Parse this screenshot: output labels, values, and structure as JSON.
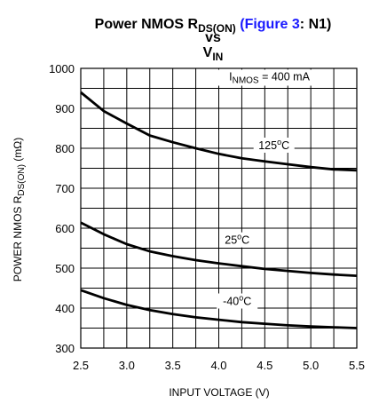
{
  "title": {
    "line1_prefix": "Power NMOS R",
    "line1_sub": "DS(ON)",
    "line1_paren_open": "(",
    "line1_link": "Figure 3",
    "line1_paren_rest": ": N1)",
    "line2": "vs",
    "line3_main": "V",
    "line3_sub": "IN",
    "link_color": "#1a1aff"
  },
  "chart_data": {
    "type": "line",
    "xlabel": "INPUT VOLTAGE (V)",
    "ylabel_prefix": "POWER NMOS R",
    "ylabel_sub": "DS(ON)",
    "ylabel_suffix": " (mΩ)",
    "xlim": [
      2.5,
      5.5
    ],
    "ylim": [
      300,
      1000
    ],
    "xticks": [
      "2.5",
      "3.0",
      "3.5",
      "4.0",
      "4.5",
      "5.0",
      "5.5"
    ],
    "yticks": [
      "300",
      "400",
      "500",
      "600",
      "700",
      "800",
      "900",
      "1000"
    ],
    "grid": true,
    "condition": {
      "prefix": "I",
      "sub": "NMOS",
      "suffix": " = 400 mA"
    },
    "series": [
      {
        "name": "125°C",
        "x": [
          2.5,
          2.75,
          3.0,
          3.25,
          3.5,
          3.75,
          4.0,
          4.25,
          4.5,
          4.75,
          5.0,
          5.25,
          5.5
        ],
        "y": [
          940,
          893,
          862,
          832,
          815,
          800,
          786,
          775,
          767,
          760,
          753,
          747,
          745
        ]
      },
      {
        "name": "25°C",
        "x": [
          2.5,
          2.75,
          3.0,
          3.25,
          3.5,
          3.75,
          4.0,
          4.25,
          4.5,
          4.75,
          5.0,
          5.25,
          5.5
        ],
        "y": [
          614,
          585,
          560,
          542,
          530,
          520,
          512,
          505,
          498,
          493,
          488,
          484,
          481
        ]
      },
      {
        "name": "-40°C",
        "x": [
          2.5,
          2.75,
          3.0,
          3.25,
          3.5,
          3.75,
          4.0,
          4.25,
          4.5,
          4.75,
          5.0,
          5.25,
          5.5
        ],
        "y": [
          445,
          425,
          408,
          395,
          385,
          377,
          371,
          365,
          361,
          357,
          354,
          352,
          350
        ]
      }
    ],
    "labels": [
      {
        "base": "125",
        "sup": "o",
        "unit": "C",
        "x": 4.6,
        "y": 800
      },
      {
        "base": "25",
        "sup": "o",
        "unit": "C",
        "x": 4.2,
        "y": 563
      },
      {
        "base": "-40",
        "sup": "o",
        "unit": "C",
        "x": 4.2,
        "y": 410
      }
    ]
  }
}
